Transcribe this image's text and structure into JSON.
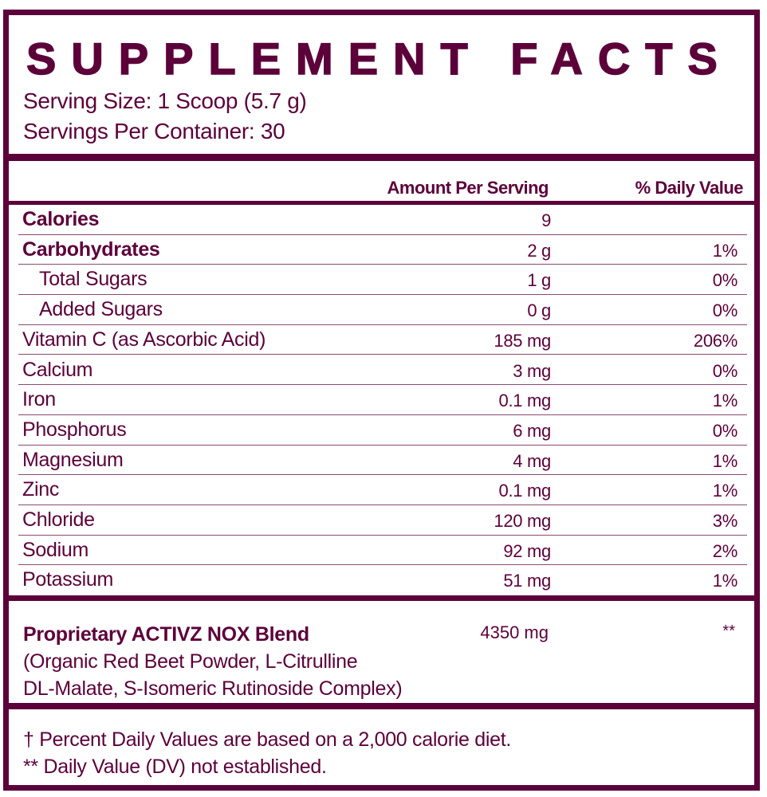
{
  "title": "SUPPLEMENT FACTS",
  "serving_size": "Serving Size: 1 Scoop (5.7 g)",
  "servings_per_container": "Servings Per Container: 30",
  "headers": {
    "amount": "Amount Per Serving",
    "dv": "% Daily Value"
  },
  "rows": [
    {
      "name": "Calories",
      "amount": "9",
      "dv": "",
      "bold": true,
      "indent": false
    },
    {
      "name": "Carbohydrates",
      "amount": "2 g",
      "dv": "1%",
      "bold": true,
      "indent": false
    },
    {
      "name": "Total Sugars",
      "amount": "1 g",
      "dv": "0%",
      "bold": false,
      "indent": true
    },
    {
      "name": "Added Sugars",
      "amount": "0 g",
      "dv": "0%",
      "bold": false,
      "indent": true
    },
    {
      "name": "Vitamin C (as Ascorbic Acid)",
      "amount": "185 mg",
      "dv": "206%",
      "bold": false,
      "indent": false
    },
    {
      "name": "Calcium",
      "amount": "3 mg",
      "dv": "0%",
      "bold": false,
      "indent": false
    },
    {
      "name": "Iron",
      "amount": "0.1 mg",
      "dv": "1%",
      "bold": false,
      "indent": false
    },
    {
      "name": "Phosphorus",
      "amount": "6 mg",
      "dv": "0%",
      "bold": false,
      "indent": false
    },
    {
      "name": "Magnesium",
      "amount": "4 mg",
      "dv": "1%",
      "bold": false,
      "indent": false
    },
    {
      "name": "Zinc",
      "amount": "0.1 mg",
      "dv": "1%",
      "bold": false,
      "indent": false
    },
    {
      "name": "Chloride",
      "amount": "120 mg",
      "dv": "3%",
      "bold": false,
      "indent": false
    },
    {
      "name": "Sodium",
      "amount": "92 mg",
      "dv": "2%",
      "bold": false,
      "indent": false
    },
    {
      "name": "Potassium",
      "amount": "51 mg",
      "dv": "1%",
      "bold": false,
      "indent": false
    }
  ],
  "blend": {
    "name": "Proprietary ACTIVZ NOX Blend",
    "amount": "4350 mg",
    "dv": "**",
    "ingredients_1": "(Organic Red Beet Powder, L-Citrulline",
    "ingredients_2": "DL-Malate, S-Isomeric Rutinoside Complex)"
  },
  "footnotes": [
    "† Percent Daily Values are based on a 2,000 calorie diet.",
    "** Daily Value (DV) not established."
  ],
  "colors": {
    "primary": "#5c003a"
  }
}
